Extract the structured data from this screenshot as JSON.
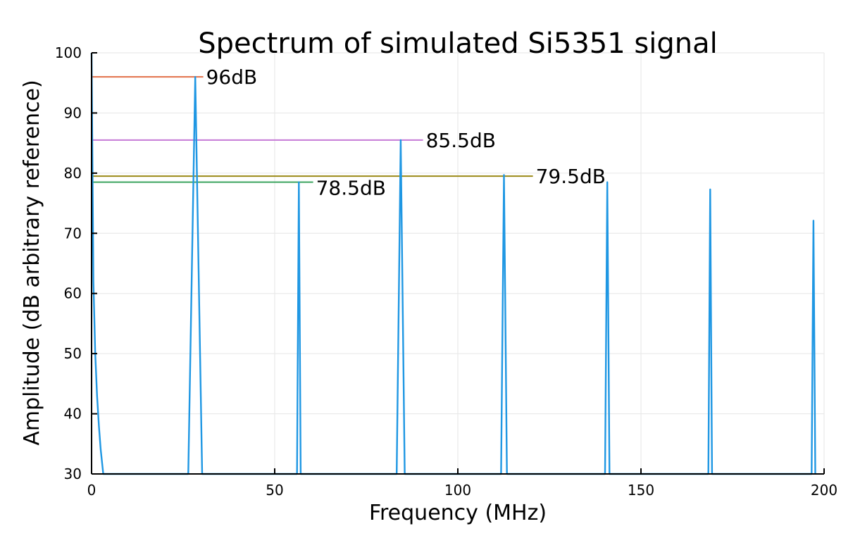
{
  "chart_data": {
    "type": "line",
    "title": "Spectrum of simulated Si5351 signal",
    "xlabel": "Frequency (MHz)",
    "ylabel": "Amplitude (dB arbitrary reference)",
    "xlim": [
      0,
      200
    ],
    "ylim": [
      30,
      100
    ],
    "xticks": [
      0,
      50,
      100,
      150,
      200
    ],
    "yticks": [
      30,
      40,
      50,
      60,
      70,
      80,
      90,
      100
    ],
    "grid": true,
    "legend": "none",
    "colors": {
      "spectrum": "#1f97e3",
      "ref_96": "#e2714a",
      "ref_85_5": "#c67ad6",
      "ref_79_5": "#9b8a16",
      "ref_78_5": "#3aa45e"
    },
    "spectrum": {
      "base_left": {
        "x": [
          0,
          0.5,
          1.0,
          1.5,
          2.0,
          2.5,
          3.2
        ],
        "y": [
          100,
          62,
          50,
          43,
          38,
          34,
          30
        ]
      },
      "peaks": [
        {
          "x": 28.3,
          "y": 96.0,
          "half_width": 1.9
        },
        {
          "x": 56.6,
          "y": 78.5,
          "half_width": 0.5
        },
        {
          "x": 84.4,
          "y": 85.5,
          "half_width": 1.1
        },
        {
          "x": 112.6,
          "y": 79.7,
          "half_width": 0.8
        },
        {
          "x": 140.8,
          "y": 78.5,
          "half_width": 0.6
        },
        {
          "x": 168.9,
          "y": 77.3,
          "half_width": 0.5
        },
        {
          "x": 197.1,
          "y": 72.1,
          "half_width": 0.5
        }
      ]
    },
    "reference_lines": [
      {
        "id": "ref_96",
        "y": 96.0,
        "x_end": 30.5,
        "label": "96dB"
      },
      {
        "id": "ref_85_5",
        "y": 85.5,
        "x_end": 90.5,
        "label": "85.5dB"
      },
      {
        "id": "ref_79_5",
        "y": 79.5,
        "x_end": 120.5,
        "label": "79.5dB"
      },
      {
        "id": "ref_78_5",
        "y": 78.5,
        "x_end": 60.5,
        "label": "78.5dB"
      }
    ]
  }
}
